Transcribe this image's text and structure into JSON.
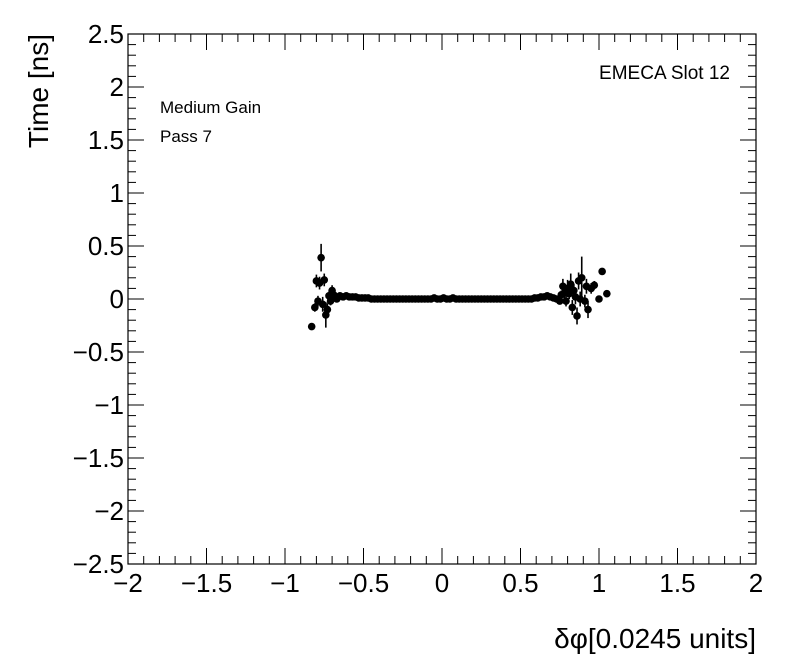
{
  "chart_data": {
    "type": "scatter",
    "xlabel": "δφ[0.0245 units]",
    "ylabel": "Time [ns]",
    "xlim": [
      -2,
      2
    ],
    "ylim": [
      -2.5,
      2.5
    ],
    "x_ticks": [
      -2,
      -1.5,
      -1,
      -0.5,
      0,
      0.5,
      1,
      1.5,
      2
    ],
    "x_tick_labels": [
      "−2",
      "−1.5",
      "−1",
      "−0.5",
      "0",
      "0.5",
      "1",
      "1.5",
      "2"
    ],
    "y_ticks": [
      -2.5,
      -2,
      -1.5,
      -1,
      -0.5,
      0,
      0.5,
      1,
      1.5,
      2,
      2.5
    ],
    "y_tick_labels": [
      "−2.5",
      "−2",
      "−1.5",
      "−1",
      "−0.5",
      "0",
      "0.5",
      "1",
      "1.5",
      "2",
      "2.5"
    ],
    "annotations": {
      "gain": "Medium Gain",
      "pass": "Pass 7",
      "slot": "EMECA Slot 12"
    },
    "grid": false,
    "marker_color": "#000000",
    "series": [
      {
        "points": [
          {
            "x": -0.83,
            "y": -0.26,
            "err": 0.03
          },
          {
            "x": -0.81,
            "y": -0.08,
            "err": 0.04
          },
          {
            "x": -0.8,
            "y": 0.17,
            "err": 0.06
          },
          {
            "x": -0.79,
            "y": -0.02,
            "err": 0.05
          },
          {
            "x": -0.78,
            "y": 0.15,
            "err": 0.06
          },
          {
            "x": -0.77,
            "y": 0.39,
            "err": 0.13
          },
          {
            "x": -0.76,
            "y": -0.05,
            "err": 0.07
          },
          {
            "x": -0.75,
            "y": 0.18,
            "err": 0.06
          },
          {
            "x": -0.74,
            "y": -0.15,
            "err": 0.12
          },
          {
            "x": -0.73,
            "y": -0.1,
            "err": 0.06
          },
          {
            "x": -0.72,
            "y": 0.03,
            "err": 0.04
          },
          {
            "x": -0.71,
            "y": -0.02,
            "err": 0.04
          },
          {
            "x": -0.7,
            "y": 0.08,
            "err": 0.05
          },
          {
            "x": -0.69,
            "y": 0.04,
            "err": 0.03
          },
          {
            "x": -0.68,
            "y": 0.02,
            "err": 0.02
          },
          {
            "x": -0.67,
            "y": 0.0,
            "err": 0.02
          },
          {
            "x": -0.65,
            "y": 0.03,
            "err": 0.02
          },
          {
            "x": -0.63,
            "y": 0.02,
            "err": 0.01
          },
          {
            "x": -0.61,
            "y": 0.03,
            "err": 0.01
          },
          {
            "x": -0.59,
            "y": 0.02,
            "err": 0.01
          },
          {
            "x": -0.57,
            "y": 0.02,
            "err": 0.01
          },
          {
            "x": -0.55,
            "y": 0.02,
            "err": 0.01
          },
          {
            "x": -0.53,
            "y": 0.01,
            "err": 0.01
          },
          {
            "x": -0.51,
            "y": 0.01,
            "err": 0.01
          },
          {
            "x": -0.49,
            "y": 0.01,
            "err": 0.01
          },
          {
            "x": -0.47,
            "y": 0.01,
            "err": 0.01
          },
          {
            "x": -0.45,
            "y": 0.0,
            "err": 0.01
          },
          {
            "x": -0.43,
            "y": 0.0,
            "err": 0.01
          },
          {
            "x": -0.41,
            "y": 0.0,
            "err": 0.01
          },
          {
            "x": -0.39,
            "y": 0.0,
            "err": 0.01
          },
          {
            "x": -0.37,
            "y": 0.0,
            "err": 0.01
          },
          {
            "x": -0.35,
            "y": 0.0,
            "err": 0.01
          },
          {
            "x": -0.33,
            "y": 0.0,
            "err": 0.01
          },
          {
            "x": -0.31,
            "y": 0.0,
            "err": 0.01
          },
          {
            "x": -0.29,
            "y": 0.0,
            "err": 0.01
          },
          {
            "x": -0.27,
            "y": 0.0,
            "err": 0.01
          },
          {
            "x": -0.25,
            "y": 0.0,
            "err": 0.01
          },
          {
            "x": -0.23,
            "y": 0.0,
            "err": 0.01
          },
          {
            "x": -0.21,
            "y": 0.0,
            "err": 0.01
          },
          {
            "x": -0.19,
            "y": 0.0,
            "err": 0.01
          },
          {
            "x": -0.17,
            "y": 0.0,
            "err": 0.01
          },
          {
            "x": -0.15,
            "y": 0.0,
            "err": 0.01
          },
          {
            "x": -0.13,
            "y": 0.0,
            "err": 0.01
          },
          {
            "x": -0.11,
            "y": 0.0,
            "err": 0.01
          },
          {
            "x": -0.09,
            "y": 0.0,
            "err": 0.01
          },
          {
            "x": -0.07,
            "y": 0.0,
            "err": 0.01
          },
          {
            "x": -0.05,
            "y": 0.01,
            "err": 0.01
          },
          {
            "x": -0.03,
            "y": 0.0,
            "err": 0.01
          },
          {
            "x": -0.01,
            "y": 0.0,
            "err": 0.01
          },
          {
            "x": 0.01,
            "y": 0.01,
            "err": 0.01
          },
          {
            "x": 0.03,
            "y": 0.0,
            "err": 0.01
          },
          {
            "x": 0.05,
            "y": 0.0,
            "err": 0.01
          },
          {
            "x": 0.07,
            "y": 0.01,
            "err": 0.01
          },
          {
            "x": 0.09,
            "y": 0.0,
            "err": 0.01
          },
          {
            "x": 0.11,
            "y": 0.0,
            "err": 0.01
          },
          {
            "x": 0.13,
            "y": 0.0,
            "err": 0.01
          },
          {
            "x": 0.15,
            "y": 0.0,
            "err": 0.01
          },
          {
            "x": 0.17,
            "y": 0.0,
            "err": 0.01
          },
          {
            "x": 0.19,
            "y": 0.0,
            "err": 0.01
          },
          {
            "x": 0.21,
            "y": 0.0,
            "err": 0.01
          },
          {
            "x": 0.23,
            "y": 0.0,
            "err": 0.01
          },
          {
            "x": 0.25,
            "y": 0.0,
            "err": 0.01
          },
          {
            "x": 0.27,
            "y": 0.0,
            "err": 0.01
          },
          {
            "x": 0.29,
            "y": 0.0,
            "err": 0.01
          },
          {
            "x": 0.31,
            "y": 0.0,
            "err": 0.01
          },
          {
            "x": 0.33,
            "y": 0.0,
            "err": 0.01
          },
          {
            "x": 0.35,
            "y": 0.0,
            "err": 0.01
          },
          {
            "x": 0.37,
            "y": 0.0,
            "err": 0.01
          },
          {
            "x": 0.39,
            "y": 0.0,
            "err": 0.01
          },
          {
            "x": 0.41,
            "y": 0.0,
            "err": 0.01
          },
          {
            "x": 0.43,
            "y": 0.0,
            "err": 0.01
          },
          {
            "x": 0.45,
            "y": 0.0,
            "err": 0.01
          },
          {
            "x": 0.47,
            "y": 0.0,
            "err": 0.01
          },
          {
            "x": 0.49,
            "y": 0.0,
            "err": 0.01
          },
          {
            "x": 0.51,
            "y": 0.0,
            "err": 0.01
          },
          {
            "x": 0.53,
            "y": 0.0,
            "err": 0.01
          },
          {
            "x": 0.55,
            "y": 0.0,
            "err": 0.01
          },
          {
            "x": 0.57,
            "y": 0.0,
            "err": 0.01
          },
          {
            "x": 0.59,
            "y": 0.01,
            "err": 0.01
          },
          {
            "x": 0.61,
            "y": 0.01,
            "err": 0.01
          },
          {
            "x": 0.63,
            "y": 0.02,
            "err": 0.01
          },
          {
            "x": 0.65,
            "y": 0.02,
            "err": 0.01
          },
          {
            "x": 0.67,
            "y": 0.03,
            "err": 0.01
          },
          {
            "x": 0.69,
            "y": 0.02,
            "err": 0.01
          },
          {
            "x": 0.71,
            "y": 0.01,
            "err": 0.01
          },
          {
            "x": 0.73,
            "y": 0.0,
            "err": 0.02
          },
          {
            "x": 0.75,
            "y": -0.02,
            "err": 0.02
          },
          {
            "x": 0.76,
            "y": 0.04,
            "err": 0.04
          },
          {
            "x": 0.77,
            "y": 0.12,
            "err": 0.07
          },
          {
            "x": 0.78,
            "y": 0.06,
            "err": 0.06
          },
          {
            "x": 0.79,
            "y": -0.02,
            "err": 0.05
          },
          {
            "x": 0.8,
            "y": 0.1,
            "err": 0.08
          },
          {
            "x": 0.81,
            "y": 0.05,
            "err": 0.05
          },
          {
            "x": 0.82,
            "y": 0.14,
            "err": 0.1
          },
          {
            "x": 0.83,
            "y": -0.08,
            "err": 0.07
          },
          {
            "x": 0.84,
            "y": 0.08,
            "err": 0.06
          },
          {
            "x": 0.85,
            "y": 0.02,
            "err": 0.07
          },
          {
            "x": 0.86,
            "y": -0.16,
            "err": 0.08
          },
          {
            "x": 0.87,
            "y": 0.17,
            "err": 0.08
          },
          {
            "x": 0.88,
            "y": 0.0,
            "err": 0.07
          },
          {
            "x": 0.89,
            "y": 0.2,
            "err": 0.2
          },
          {
            "x": 0.91,
            "y": -0.02,
            "err": 0.06
          },
          {
            "x": 0.92,
            "y": 0.12,
            "err": 0.07
          },
          {
            "x": 0.93,
            "y": -0.1,
            "err": 0.08
          },
          {
            "x": 0.95,
            "y": 0.1,
            "err": 0.05
          },
          {
            "x": 0.97,
            "y": 0.13,
            "err": 0.04
          },
          {
            "x": 1.0,
            "y": 0.0,
            "err": 0.03
          },
          {
            "x": 1.02,
            "y": 0.26,
            "err": 0.03
          },
          {
            "x": 1.05,
            "y": 0.05,
            "err": 0.02
          }
        ]
      }
    ]
  }
}
